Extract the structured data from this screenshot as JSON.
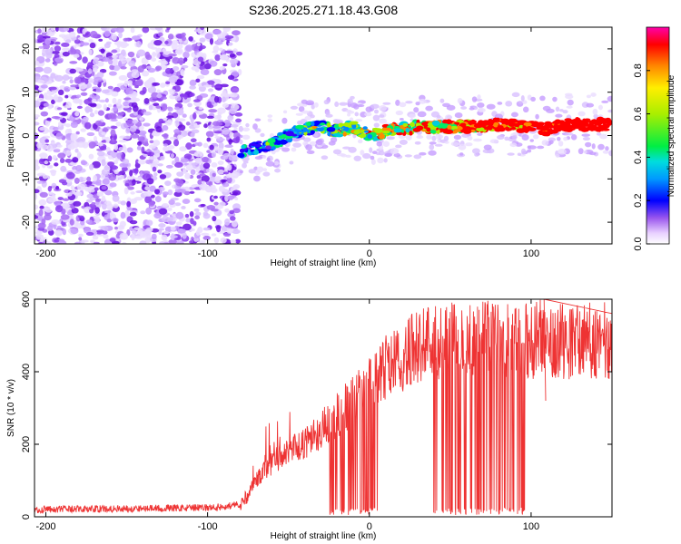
{
  "title": "S236.2025.271.18.43.G08",
  "chart_data": [
    {
      "type": "heatmap",
      "xlabel": "Height of straight line (km)",
      "ylabel": "Frequency (Hz)",
      "xlim": [
        -207,
        150
      ],
      "ylim": [
        -25,
        25
      ],
      "xticks": [
        -200,
        -100,
        0,
        100
      ],
      "yticks": [
        -20,
        -10,
        0,
        10,
        20
      ],
      "colorbar": {
        "label": "Normalized spectral amplitude",
        "range": [
          0,
          1
        ],
        "ticks": [
          "0.0",
          "0.2",
          "0.4",
          "0.6",
          "0.8"
        ]
      },
      "noise_region_x": [
        -207,
        -80
      ],
      "ridge": [
        {
          "x": -80,
          "y": -4
        },
        {
          "x": -70,
          "y": -3
        },
        {
          "x": -60,
          "y": -2
        },
        {
          "x": -50,
          "y": 0
        },
        {
          "x": -40,
          "y": 1.5
        },
        {
          "x": -30,
          "y": 2
        },
        {
          "x": -20,
          "y": 1
        },
        {
          "x": -10,
          "y": 2
        },
        {
          "x": 0,
          "y": 0
        },
        {
          "x": 10,
          "y": 1
        },
        {
          "x": 20,
          "y": 1.5
        },
        {
          "x": 30,
          "y": 2
        },
        {
          "x": 40,
          "y": 2
        },
        {
          "x": 50,
          "y": 2
        },
        {
          "x": 60,
          "y": 2
        },
        {
          "x": 70,
          "y": 2
        },
        {
          "x": 80,
          "y": 2.5
        },
        {
          "x": 90,
          "y": 2.5
        },
        {
          "x": 100,
          "y": 2
        },
        {
          "x": 110,
          "y": 1.5
        },
        {
          "x": 120,
          "y": 2.5
        },
        {
          "x": 130,
          "y": 2.5
        },
        {
          "x": 140,
          "y": 2.5
        },
        {
          "x": 150,
          "y": 2.5
        }
      ]
    },
    {
      "type": "line",
      "xlabel": "Height of straight line (km)",
      "ylabel": "SNR (10 * v/v)",
      "xlim": [
        -207,
        150
      ],
      "ylim": [
        0,
        600
      ],
      "xticks": [
        -200,
        -100,
        0,
        100
      ],
      "yticks": [
        0,
        200,
        400,
        600
      ],
      "series": [
        {
          "name": "SNR",
          "color": "#ee3333",
          "points": [
            {
              "x": -207,
              "y": 20
            },
            {
              "x": -100,
              "y": 25
            },
            {
              "x": -90,
              "y": 28
            },
            {
              "x": -80,
              "y": 35
            },
            {
              "x": -75,
              "y": 60
            },
            {
              "x": -70,
              "y": 100
            },
            {
              "x": -60,
              "y": 150
            },
            {
              "x": -50,
              "y": 180
            },
            {
              "x": -40,
              "y": 200
            },
            {
              "x": -30,
              "y": 240
            },
            {
              "x": -20,
              "y": 280
            },
            {
              "x": -10,
              "y": 320
            },
            {
              "x": 0,
              "y": 370
            },
            {
              "x": 10,
              "y": 410
            },
            {
              "x": 20,
              "y": 440
            },
            {
              "x": 30,
              "y": 470
            },
            {
              "x": 40,
              "y": 480
            },
            {
              "x": 60,
              "y": 490
            },
            {
              "x": 80,
              "y": 495
            },
            {
              "x": 100,
              "y": 480
            },
            {
              "x": 105,
              "y": 500
            },
            {
              "x": 120,
              "y": 485
            },
            {
              "x": 150,
              "y": 485
            }
          ],
          "dropout_ranges": [
            [
              -25,
              5
            ],
            [
              38,
              97
            ]
          ],
          "spikes": [
            {
              "x": 108,
              "y": 600
            },
            {
              "x": 109,
              "y": 320
            }
          ]
        }
      ]
    }
  ]
}
